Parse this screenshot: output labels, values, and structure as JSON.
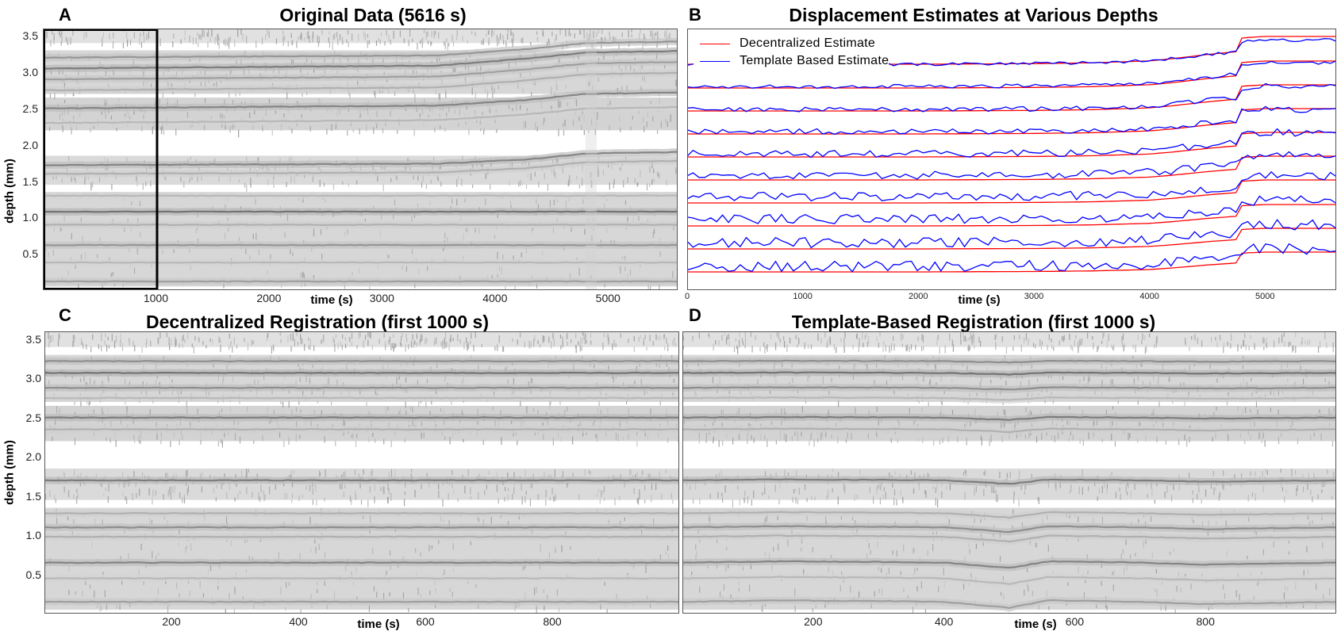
{
  "panels": {
    "A": {
      "letter": "A",
      "title": "Original Data (5616 s)",
      "xlabel": "time (s)",
      "ylabel": "depth (mm)",
      "xticks": [
        "1000",
        "2000",
        "3000",
        "4000",
        "5000"
      ],
      "yticks": [
        "0.5",
        "1.0",
        "1.5",
        "2.0",
        "2.5",
        "3.0",
        "3.5"
      ]
    },
    "B": {
      "letter": "B",
      "title": "Displacement Estimates at Various Depths",
      "xlabel": "time (s)",
      "xticks": [
        "0",
        "1000",
        "2000",
        "3000",
        "4000",
        "5000"
      ],
      "legend": {
        "decentralized": "Decentralized Estimate",
        "template": "Template Based Estimate"
      }
    },
    "C": {
      "letter": "C",
      "title": "Decentralized Registration (first 1000 s)",
      "xlabel": "time (s)",
      "ylabel": "depth (mm)",
      "xticks": [
        "200",
        "400",
        "600",
        "800"
      ],
      "yticks": [
        "0.5",
        "1.0",
        "1.5",
        "2.0",
        "2.5",
        "3.0",
        "3.5"
      ]
    },
    "D": {
      "letter": "D",
      "title": "Template-Based Registration (first 1000 s)",
      "xlabel": "time (s)",
      "xticks": [
        "200",
        "400",
        "600",
        "800"
      ]
    }
  },
  "chart_data": [
    {
      "type": "heatmap",
      "panel": "A",
      "title": "Original Data (5616 s)",
      "xlabel": "time (s)",
      "ylabel": "depth (mm)",
      "xlim": [
        0,
        5616
      ],
      "ylim": [
        0,
        3.6
      ],
      "highlight_window_s": [
        0,
        1000
      ],
      "bands": [
        {
          "depth": 3.2,
          "level": 0.5,
          "drift_mm": [
            [
              0,
              0
            ],
            [
              3500,
              0.03
            ],
            [
              4300,
              0.12
            ],
            [
              4800,
              0.2
            ],
            [
              5616,
              0.22
            ]
          ]
        },
        {
          "depth": 3.05,
          "level": 0.65,
          "drift_mm": [
            [
              0,
              0
            ],
            [
              3500,
              0.04
            ],
            [
              4300,
              0.14
            ],
            [
              4800,
              0.22
            ],
            [
              5616,
              0.24
            ]
          ]
        },
        {
          "depth": 2.9,
          "level": 0.45,
          "drift_mm": [
            [
              0,
              0
            ],
            [
              3500,
              0.04
            ],
            [
              4300,
              0.14
            ],
            [
              4800,
              0.22
            ],
            [
              5616,
              0.24
            ]
          ]
        },
        {
          "depth": 2.75,
          "level": 0.35,
          "drift_mm": [
            [
              0,
              0
            ],
            [
              3500,
              0.04
            ],
            [
              4300,
              0.14
            ],
            [
              4800,
              0.22
            ],
            [
              5616,
              0.24
            ]
          ]
        },
        {
          "depth": 2.5,
          "level": 0.6,
          "drift_mm": [
            [
              0,
              0
            ],
            [
              3500,
              0.04
            ],
            [
              4300,
              0.12
            ],
            [
              4800,
              0.2
            ],
            [
              5616,
              0.22
            ]
          ]
        },
        {
          "depth": 2.3,
          "level": 0.3,
          "drift_mm": [
            [
              0,
              0
            ],
            [
              3500,
              0.04
            ],
            [
              4300,
              0.12
            ],
            [
              4800,
              0.2
            ],
            [
              5616,
              0.22
            ]
          ]
        },
        {
          "depth": 1.72,
          "level": 0.6,
          "drift_mm": [
            [
              0,
              0
            ],
            [
              3500,
              0.02
            ],
            [
              4300,
              0.08
            ],
            [
              4800,
              0.16
            ],
            [
              5616,
              0.18
            ]
          ]
        },
        {
          "depth": 1.6,
          "level": 0.35,
          "drift_mm": [
            [
              0,
              0
            ],
            [
              3500,
              0.02
            ],
            [
              4300,
              0.08
            ],
            [
              4800,
              0.16
            ],
            [
              5616,
              0.18
            ]
          ]
        },
        {
          "depth": 1.3,
          "level": 0.3,
          "drift_mm": [
            [
              0,
              0
            ],
            [
              5616,
              0
            ]
          ]
        },
        {
          "depth": 1.08,
          "level": 0.7,
          "drift_mm": [
            [
              0,
              0
            ],
            [
              5616,
              0
            ]
          ]
        },
        {
          "depth": 0.9,
          "level": 0.35,
          "drift_mm": [
            [
              0,
              0
            ],
            [
              5616,
              0
            ]
          ]
        },
        {
          "depth": 0.62,
          "level": 0.5,
          "drift_mm": [
            [
              0,
              0
            ],
            [
              5616,
              0
            ]
          ]
        },
        {
          "depth": 0.38,
          "level": 0.3,
          "drift_mm": [
            [
              0,
              0
            ],
            [
              5616,
              0
            ]
          ]
        },
        {
          "depth": 0.12,
          "level": 0.45,
          "drift_mm": [
            [
              0,
              0
            ],
            [
              5616,
              0
            ]
          ]
        }
      ]
    },
    {
      "type": "line",
      "panel": "B",
      "title": "Displacement Estimates at Various Depths",
      "xlabel": "time (s)",
      "xlim": [
        0,
        5616
      ],
      "legend_position": "top-left",
      "x": [
        0,
        500,
        1000,
        1500,
        2000,
        2500,
        3000,
        3500,
        4000,
        4200,
        4500,
        4750,
        4800,
        5000,
        5300,
        5616
      ],
      "series": [
        {
          "name": "Decentralized Estimate",
          "color": "#ff0000",
          "profile": [
            0,
            0,
            0,
            0,
            0,
            0.01,
            0.02,
            0.05,
            0.12,
            0.2,
            0.35,
            0.45,
            0.95,
            1.0,
            1.0,
            1.0
          ]
        },
        {
          "name": "Template Based Estimate",
          "color": "#0000ff",
          "profile": [
            0,
            0,
            0,
            0,
            0,
            0.01,
            0.02,
            0.05,
            0.12,
            0.2,
            0.35,
            0.45,
            0.8,
            0.9,
            0.85,
            0.88
          ]
        }
      ],
      "traces": [
        {
          "red_base": 3.35,
          "blue_base": 3.35,
          "amplitude": 0.35,
          "noise": 0.02
        },
        {
          "red_base": 3.05,
          "blue_base": 3.07,
          "amplitude": 0.34,
          "noise": 0.025
        },
        {
          "red_base": 2.76,
          "blue_base": 2.78,
          "amplitude": 0.33,
          "noise": 0.03
        },
        {
          "red_base": 2.47,
          "blue_base": 2.5,
          "amplitude": 0.32,
          "noise": 0.035
        },
        {
          "red_base": 2.18,
          "blue_base": 2.22,
          "amplitude": 0.31,
          "noise": 0.045
        },
        {
          "red_base": 1.89,
          "blue_base": 1.95,
          "amplitude": 0.3,
          "noise": 0.05
        },
        {
          "red_base": 1.6,
          "blue_base": 1.68,
          "amplitude": 0.29,
          "noise": 0.055
        },
        {
          "red_base": 1.31,
          "blue_base": 1.4,
          "amplitude": 0.27,
          "noise": 0.06
        },
        {
          "red_base": 1.02,
          "blue_base": 1.1,
          "amplitude": 0.26,
          "noise": 0.065
        },
        {
          "red_base": 0.73,
          "blue_base": 0.8,
          "amplitude": 0.25,
          "noise": 0.07
        }
      ]
    },
    {
      "type": "heatmap",
      "panel": "C",
      "title": "Decentralized Registration (first 1000 s)",
      "xlabel": "time (s)",
      "ylabel": "depth (mm)",
      "xlim": [
        0,
        1000
      ],
      "ylim": [
        0,
        3.6
      ],
      "bands": [
        {
          "depth": 3.22,
          "level": 0.55
        },
        {
          "depth": 3.07,
          "level": 0.7
        },
        {
          "depth": 2.88,
          "level": 0.55
        },
        {
          "depth": 2.75,
          "level": 0.3
        },
        {
          "depth": 2.5,
          "level": 0.65
        },
        {
          "depth": 2.35,
          "level": 0.35
        },
        {
          "depth": 1.7,
          "level": 0.65
        },
        {
          "depth": 1.28,
          "level": 0.35
        },
        {
          "depth": 1.1,
          "level": 0.55
        },
        {
          "depth": 0.98,
          "level": 0.35
        },
        {
          "depth": 0.65,
          "level": 0.6
        },
        {
          "depth": 0.45,
          "level": 0.3
        },
        {
          "depth": 0.15,
          "level": 0.45
        }
      ]
    },
    {
      "type": "heatmap",
      "panel": "D",
      "title": "Template-Based Registration (first 1000 s)",
      "xlabel": "time (s)",
      "xlim": [
        0,
        1000
      ],
      "ylim": [
        0,
        3.6
      ],
      "bands": [
        {
          "depth": 3.22,
          "level": 0.55
        },
        {
          "depth": 3.07,
          "level": 0.7
        },
        {
          "depth": 2.88,
          "level": 0.55
        },
        {
          "depth": 2.75,
          "level": 0.3
        },
        {
          "depth": 2.5,
          "level": 0.65
        },
        {
          "depth": 2.35,
          "level": 0.35
        },
        {
          "depth": 1.7,
          "level": 0.65
        },
        {
          "depth": 1.28,
          "level": 0.35
        },
        {
          "depth": 1.1,
          "level": 0.55
        },
        {
          "depth": 0.98,
          "level": 0.35
        },
        {
          "depth": 0.65,
          "level": 0.6
        },
        {
          "depth": 0.45,
          "level": 0.3
        },
        {
          "depth": 0.15,
          "level": 0.45
        }
      ],
      "wobble": [
        [
          0,
          0
        ],
        [
          150,
          0.02
        ],
        [
          300,
          0.01
        ],
        [
          400,
          0
        ],
        [
          500,
          -0.08
        ],
        [
          560,
          0.02
        ],
        [
          700,
          0
        ],
        [
          800,
          -0.03
        ],
        [
          1000,
          0
        ]
      ]
    }
  ]
}
